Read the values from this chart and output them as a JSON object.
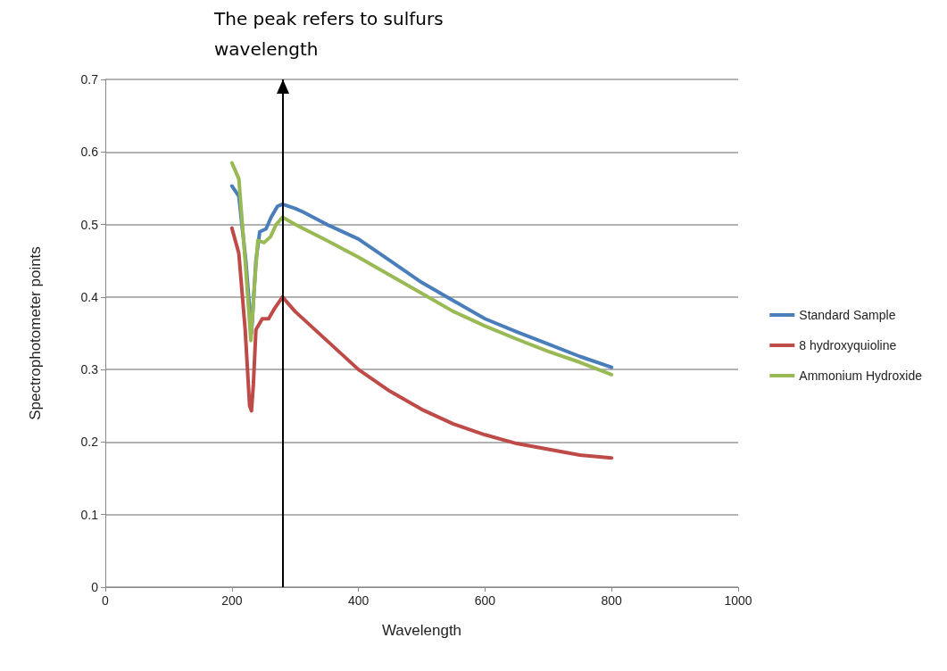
{
  "chart_data": {
    "type": "line",
    "xlabel": "Wavelength",
    "ylabel": "Spectrophotometer points",
    "xlim": [
      0,
      1000
    ],
    "xticks": [
      0,
      200,
      400,
      600,
      800,
      1000
    ],
    "ylim": [
      0,
      0.7
    ],
    "yticks": [
      0,
      0.1,
      0.2,
      0.3,
      0.4,
      0.5,
      0.6,
      0.7
    ],
    "grid": "y",
    "legend": "right",
    "marker": "none",
    "line_style": "solid",
    "annotations": [
      "The peak refers to sulfurs wavelength"
    ],
    "ref_lines": [
      {
        "axis": "x",
        "value": 280,
        "color": "#000000"
      }
    ],
    "series": [
      {
        "name": "Standard Sample",
        "color": "#4a7ebb",
        "x": [
          200,
          211,
          222,
          231,
          238,
          244,
          254,
          262,
          272,
          280,
          300,
          313,
          350,
          400,
          450,
          500,
          550,
          600,
          650,
          700,
          750,
          800
        ],
        "values": [
          0.553,
          0.539,
          0.45,
          0.35,
          0.45,
          0.49,
          0.494,
          0.51,
          0.525,
          0.528,
          0.522,
          0.517,
          0.5,
          0.48,
          0.45,
          0.42,
          0.395,
          0.37,
          0.352,
          0.335,
          0.318,
          0.303
        ]
      },
      {
        "name": "8 hydroxyquioline",
        "color": "#be4b48",
        "x": [
          200,
          211,
          221,
          228,
          231,
          234,
          238,
          248,
          258,
          268,
          280,
          300,
          350,
          400,
          450,
          500,
          550,
          600,
          650,
          700,
          750,
          800
        ],
        "values": [
          0.495,
          0.46,
          0.355,
          0.25,
          0.243,
          0.28,
          0.355,
          0.37,
          0.37,
          0.385,
          0.4,
          0.38,
          0.34,
          0.3,
          0.27,
          0.245,
          0.225,
          0.21,
          0.198,
          0.19,
          0.182,
          0.178
        ]
      },
      {
        "name": "Ammonium Hydroxide",
        "color": "#98b954",
        "x": [
          200,
          211,
          221,
          230,
          236,
          241,
          251,
          261,
          270,
          280,
          300,
          350,
          400,
          450,
          500,
          550,
          600,
          650,
          700,
          750,
          800
        ],
        "values": [
          0.585,
          0.563,
          0.45,
          0.34,
          0.42,
          0.478,
          0.475,
          0.483,
          0.5,
          0.51,
          0.5,
          0.478,
          0.455,
          0.43,
          0.405,
          0.38,
          0.36,
          0.342,
          0.325,
          0.31,
          0.293
        ]
      }
    ]
  }
}
